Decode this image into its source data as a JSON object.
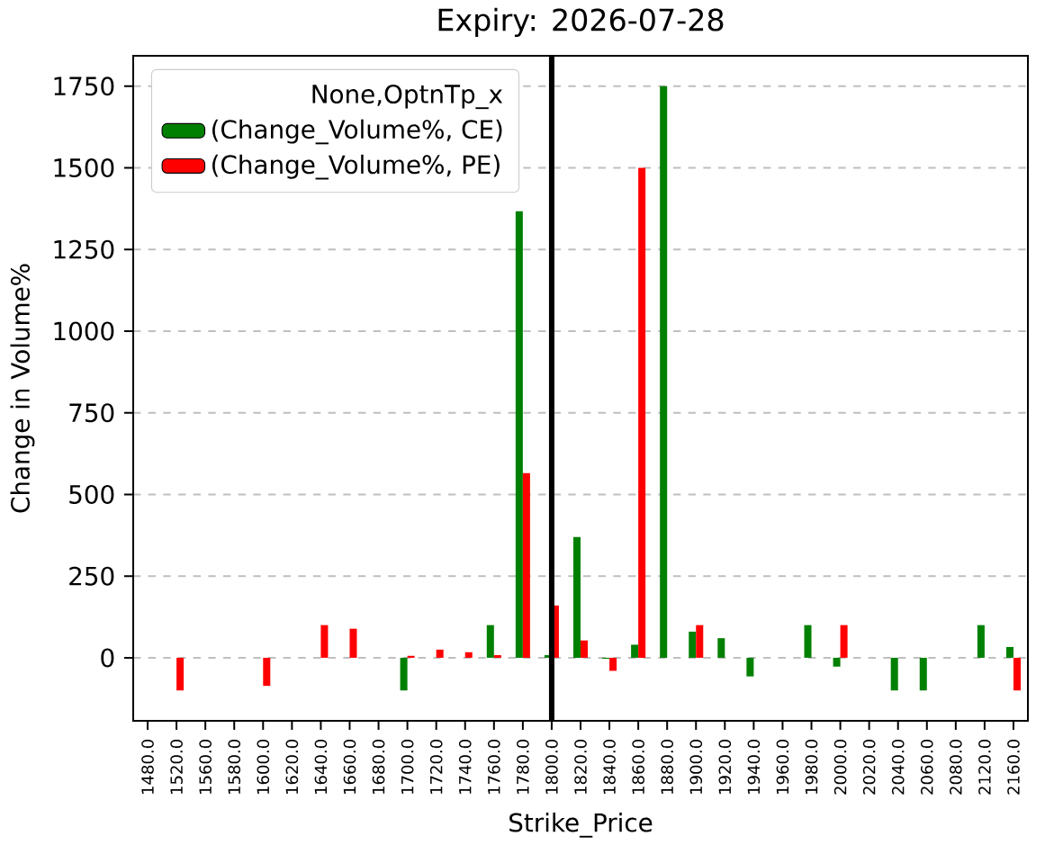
{
  "chart_data": {
    "type": "bar",
    "title": "Expiry: 2026-07-28",
    "xlabel": "Strike_Price",
    "ylabel": "Change in Volume%",
    "legend_title": "None,OptnTp_x",
    "categories": [
      "1480.0",
      "1520.0",
      "1560.0",
      "1580.0",
      "1600.0",
      "1620.0",
      "1640.0",
      "1660.0",
      "1680.0",
      "1700.0",
      "1720.0",
      "1740.0",
      "1760.0",
      "1780.0",
      "1800.0",
      "1820.0",
      "1840.0",
      "1860.0",
      "1880.0",
      "1900.0",
      "1920.0",
      "1940.0",
      "1960.0",
      "1980.0",
      "2000.0",
      "2020.0",
      "2040.0",
      "2060.0",
      "2080.0",
      "2120.0",
      "2160.0"
    ],
    "series": [
      {
        "name": "(Change_Volume%, CE)",
        "color": "#008000",
        "values": [
          null,
          null,
          null,
          null,
          null,
          null,
          null,
          null,
          null,
          -100,
          null,
          null,
          100,
          1367,
          8,
          370,
          -3,
          40,
          1750,
          80,
          60,
          -57,
          null,
          100,
          -27,
          null,
          -100,
          -100,
          null,
          100,
          33
        ]
      },
      {
        "name": "(Change_Volume%, PE)",
        "color": "#ff0000",
        "values": [
          null,
          -100,
          null,
          null,
          -86,
          null,
          100,
          89,
          null,
          6,
          25,
          17,
          8,
          565,
          160,
          53,
          -40,
          1500,
          null,
          100,
          null,
          null,
          null,
          null,
          100,
          null,
          null,
          null,
          null,
          null,
          -100
        ]
      }
    ],
    "ylim": [
      -193,
      1843
    ],
    "yticks": [
      0,
      250,
      500,
      750,
      1000,
      1250,
      1500,
      1750
    ],
    "grid": "y",
    "legend": "top left",
    "ref_lines": [
      {
        "axis": "x",
        "value": "1800.0",
        "color": "#000000",
        "line_style": "solid"
      }
    ]
  }
}
